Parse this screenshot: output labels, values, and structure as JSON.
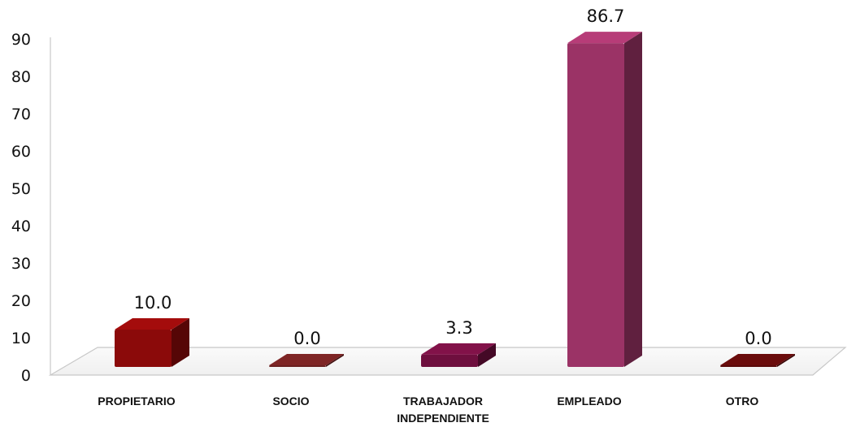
{
  "chart_data": {
    "type": "bar",
    "categories": [
      "PROPIETARIO",
      "SOCIO",
      "TRABAJADOR INDEPENDIENTE",
      "EMPLEADO",
      "OTRO"
    ],
    "category_lines": [
      [
        "PROPIETARIO"
      ],
      [
        "SOCIO"
      ],
      [
        "TRABAJADOR",
        "INDEPENDIENTE"
      ],
      [
        "EMPLEADO"
      ],
      [
        "OTRO"
      ]
    ],
    "values": [
      10.0,
      0.0,
      3.3,
      86.7,
      0.0
    ],
    "data_labels": [
      "10.0",
      "0.0",
      "3.3",
      "86.7",
      "0.0"
    ],
    "yticks": [
      "0",
      "10",
      "20",
      "30",
      "40",
      "50",
      "60",
      "70",
      "80",
      "90"
    ],
    "ylim": [
      0,
      90
    ],
    "title": "",
    "xlabel": "",
    "ylabel": "",
    "grid": false,
    "style": "3d-column",
    "colors": [
      "#8b0a0a",
      "#6b1f1f",
      "#6e0f3e",
      "#9b3366",
      "#5a0a0a"
    ]
  }
}
